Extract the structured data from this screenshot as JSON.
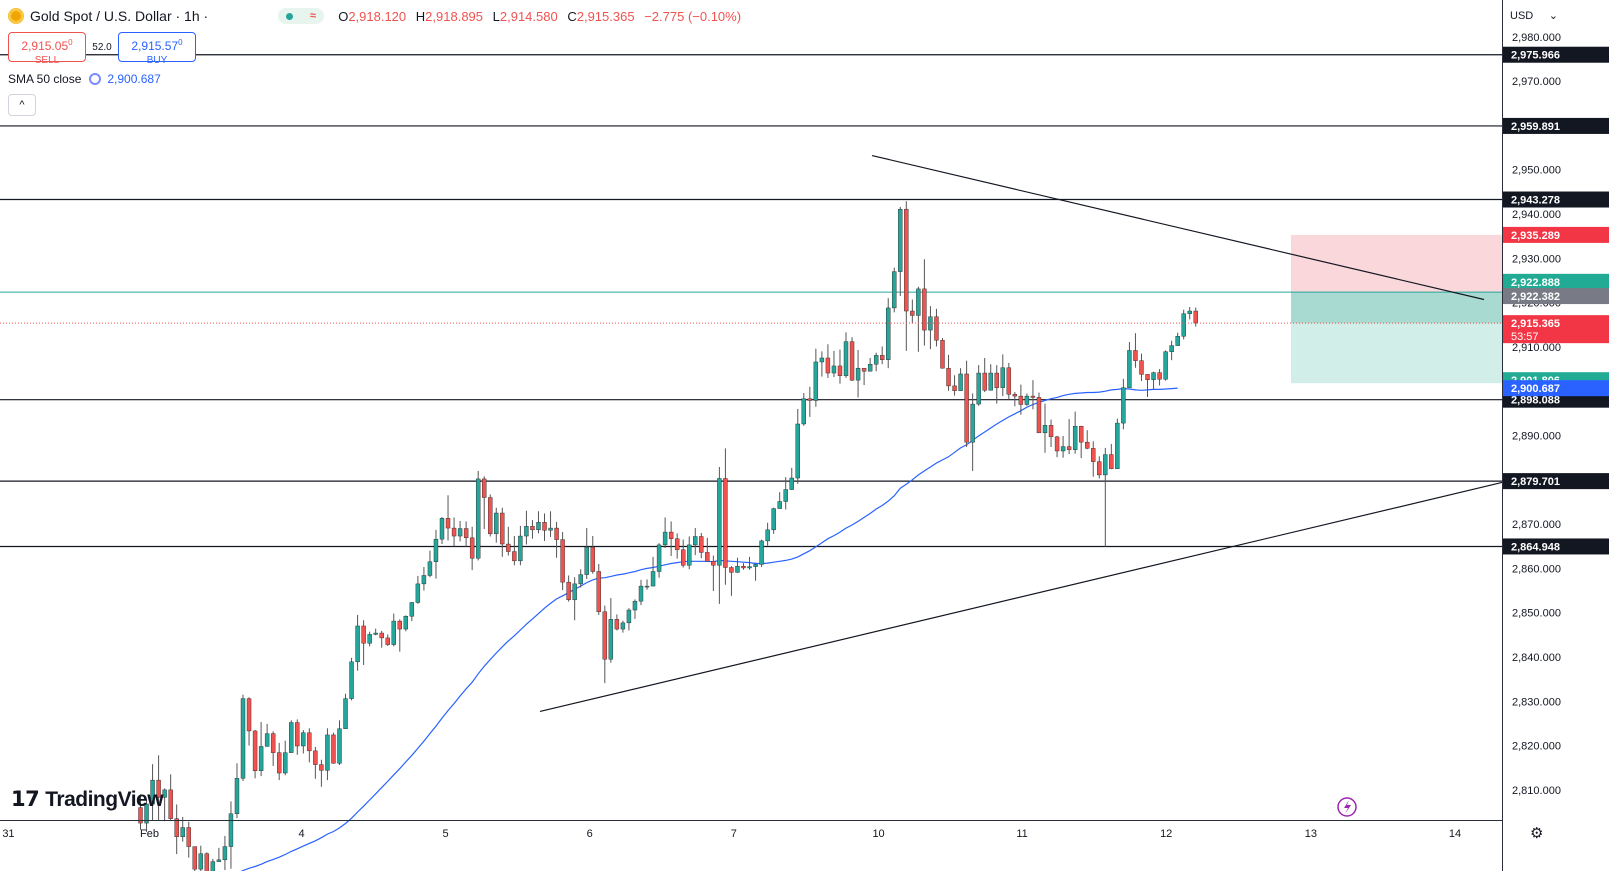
{
  "header": {
    "symbol": "Gold Spot / U.S. Dollar · 1h ·",
    "ohlc": [
      {
        "k": "O",
        "v": "2,918.120"
      },
      {
        "k": "H",
        "v": "2,918.895"
      },
      {
        "k": "L",
        "v": "2,914.580"
      },
      {
        "k": "C",
        "v": "2,915.365"
      },
      {
        "k": "",
        "v": "−2.775 (−0.10%)"
      }
    ],
    "sell_price": "2,915.05",
    "sell_price_sup": "0",
    "sell_label": "SELL",
    "spread": "52.0",
    "buy_price": "2,915.57",
    "buy_price_sup": "0",
    "buy_label": "BUY",
    "sma_label": "SMA 50 close",
    "sma_value": "2,900.687",
    "collapse": "^"
  },
  "currency": "USD",
  "brand": "TradingView",
  "colors": {
    "bull": "#26a69a",
    "bear": "#ef5350",
    "sma": "#2962ff",
    "target_zone": "#b2dfdb",
    "stop_zone": "#f8d2d4",
    "hline": "#131722",
    "tealline": "#26a69a"
  },
  "chart_data": {
    "type": "candlestick",
    "title": "Gold Spot / U.S. Dollar · 1h",
    "x_tick_labels": [
      "31",
      "Feb",
      "4",
      "5",
      "6",
      "7",
      "10",
      "11",
      "12",
      "13",
      "14"
    ],
    "y_tick_labels": [
      "2,980.000",
      "2,970.000",
      "2,960.000",
      "2,950.000",
      "2,940.000",
      "2,930.000",
      "2,920.000",
      "2,910.000",
      "2,900.000",
      "2,890.000",
      "2,880.000",
      "2,870.000",
      "2,860.000",
      "2,850.000",
      "2,840.000",
      "2,830.000",
      "2,820.000",
      "2,810.000"
    ],
    "ylim": [
      2803,
      2987
    ],
    "horizontal_levels": [
      {
        "value": 2975.966,
        "label": "2,975.966",
        "bg": "#131722"
      },
      {
        "value": 2959.891,
        "label": "2,959.891",
        "bg": "#131722"
      },
      {
        "value": 2943.278,
        "label": "2,943.278",
        "bg": "#131722"
      },
      {
        "value": 2898.088,
        "label": "2,898.088",
        "bg": "#131722"
      },
      {
        "value": 2879.701,
        "label": "2,879.701",
        "bg": "#131722"
      },
      {
        "value": 2864.948,
        "label": "2,864.948",
        "bg": "#131722"
      }
    ],
    "price_labels": [
      {
        "value": 2935.289,
        "label": "2,935.289",
        "bg": "#f23645"
      },
      {
        "value": 2922.888,
        "label": "2,922.888",
        "bg": "#22ab94"
      },
      {
        "value": 2922.382,
        "label": "2,922.382",
        "bg": "#787b86"
      },
      {
        "value": 2915.365,
        "label": "2,915.365",
        "bg": "#f23645",
        "countdown": "53:57"
      },
      {
        "value": 2901.806,
        "label": "2,901.806",
        "bg": "#22ab94"
      },
      {
        "value": 2900.687,
        "label": "2,900.687",
        "bg": "#2962ff"
      }
    ],
    "current_price": 2915.365,
    "teal_line": 2922.382,
    "position": {
      "entry": 2922.382,
      "stop": 2935.289,
      "target": 2901.806
    },
    "trendlines": [
      {
        "name": "descending-resistance",
        "from": [
          52,
          2953.2
        ],
        "to": [
          78,
          2920.7
        ]
      },
      {
        "name": "ascending-support",
        "from": [
          0,
          2827.7
        ],
        "to": [
          78,
          2879.4
        ]
      }
    ],
    "candles": [
      [
        2806.0,
        2802.5,
        2809.0,
        2801.0
      ],
      [
        2802.5,
        2806.8,
        2807.8,
        2800.5
      ],
      [
        2806.8,
        2812.2,
        2815.8,
        2803.0
      ],
      [
        2812.2,
        2808.3,
        2817.8,
        2803.0
      ],
      [
        2808.3,
        2810.0,
        2810.3,
        2802.9
      ],
      [
        2810.0,
        2803.5,
        2813.5,
        2803.1
      ],
      [
        2803.5,
        2799.4,
        2806.7,
        2795.5
      ],
      [
        2799.4,
        2801.5,
        2803.9,
        2798.3
      ],
      [
        2801.5,
        2797.2,
        2802.8,
        2794.7
      ],
      [
        2797.2,
        2792.1,
        2797.2,
        2789.8
      ],
      [
        2792.1,
        2795.6,
        2797.4,
        2791.1
      ],
      [
        2795.6,
        2789.1,
        2795.9,
        2786.6
      ],
      [
        2789.1,
        2793.8,
        2794.4,
        2788.8
      ],
      [
        2793.8,
        2794.2,
        2796.9,
        2793.7
      ],
      [
        2794.2,
        2797.2,
        2799.6,
        2791.9
      ],
      [
        2797.2,
        2804.6,
        2807.4,
        2792.2
      ],
      [
        2804.6,
        2812.6,
        2816.0,
        2803.6
      ],
      [
        2812.6,
        2830.6,
        2831.5,
        2812.0
      ],
      [
        2830.6,
        2823.3,
        2830.9,
        2820.0
      ],
      [
        2823.3,
        2814.3,
        2823.5,
        2812.6
      ],
      [
        2814.3,
        2819.8,
        2825.3,
        2813.1
      ],
      [
        2819.8,
        2822.7,
        2824.9,
        2821.3
      ],
      [
        2822.7,
        2818.4,
        2823.2,
        2815.4
      ],
      [
        2818.4,
        2813.8,
        2820.6,
        2812.2
      ],
      [
        2813.8,
        2818.4,
        2821.1,
        2813.3
      ],
      [
        2818.4,
        2825.2,
        2825.7,
        2818.4
      ],
      [
        2825.2,
        2819.9,
        2825.9,
        2817.9
      ],
      [
        2819.9,
        2822.9,
        2823.5,
        2818.2
      ],
      [
        2822.9,
        2818.8,
        2823.9,
        2816.2
      ],
      [
        2818.8,
        2815.7,
        2819.7,
        2812.5
      ],
      [
        2815.7,
        2814.4,
        2816.8,
        2810.7
      ],
      [
        2814.4,
        2822.4,
        2823.9,
        2812.2
      ],
      [
        2822.4,
        2816.0,
        2822.9,
        2815.9
      ],
      [
        2816.0,
        2823.8,
        2825.7,
        2815.6
      ],
      [
        2823.8,
        2830.6,
        2831.7,
        2823.8
      ],
      [
        2830.6,
        2838.9,
        2839.8,
        2830.2
      ],
      [
        2838.9,
        2847.0,
        2849.5,
        2836.9
      ],
      [
        2847.0,
        2843.1,
        2848.3,
        2838.2
      ],
      [
        2843.1,
        2845.1,
        2845.7,
        2842.4
      ],
      [
        2845.1,
        2845.4,
        2846.4,
        2844.9
      ],
      [
        2845.4,
        2844.3,
        2845.9,
        2842.1
      ],
      [
        2844.3,
        2842.8,
        2845.1,
        2842.5
      ],
      [
        2842.8,
        2848.1,
        2849.8,
        2842.4
      ],
      [
        2848.1,
        2846.3,
        2848.5,
        2841.2
      ],
      [
        2846.3,
        2849.2,
        2849.4,
        2845.8
      ],
      [
        2849.2,
        2852.3,
        2852.4,
        2848.1
      ],
      [
        2852.3,
        2856.5,
        2858.3,
        2852.0
      ],
      [
        2856.5,
        2858.4,
        2860.3,
        2855.0
      ],
      [
        2858.4,
        2861.5,
        2864.0,
        2858.0
      ],
      [
        2861.5,
        2866.6,
        2868.7,
        2857.7
      ],
      [
        2866.6,
        2871.3,
        2871.6,
        2865.5
      ],
      [
        2871.3,
        2869.1,
        2876.5,
        2866.3
      ],
      [
        2869.1,
        2867.3,
        2871.5,
        2865.0
      ],
      [
        2867.3,
        2869.0,
        2870.7,
        2866.1
      ],
      [
        2869.0,
        2866.9,
        2870.6,
        2864.9
      ],
      [
        2866.9,
        2862.3,
        2869.4,
        2859.6
      ],
      [
        2862.3,
        2880.2,
        2882.0,
        2861.8
      ],
      [
        2880.2,
        2876.0,
        2880.8,
        2868.9
      ],
      [
        2876.0,
        2867.8,
        2876.7,
        2867.2
      ],
      [
        2867.8,
        2872.5,
        2873.7,
        2865.8
      ],
      [
        2872.5,
        2865.5,
        2873.7,
        2862.6
      ],
      [
        2865.5,
        2863.8,
        2869.4,
        2862.9
      ],
      [
        2863.8,
        2861.7,
        2867.3,
        2860.7
      ],
      [
        2861.7,
        2867.3,
        2869.6,
        2860.7
      ],
      [
        2867.3,
        2869.5,
        2873.0,
        2865.4
      ],
      [
        2869.5,
        2868.7,
        2870.9,
        2866.7
      ],
      [
        2868.7,
        2870.4,
        2872.9,
        2867.9
      ],
      [
        2870.4,
        2868.6,
        2872.4,
        2866.2
      ],
      [
        2868.6,
        2869.1,
        2872.9,
        2867.1
      ],
      [
        2869.1,
        2866.5,
        2870.5,
        2862.4
      ],
      [
        2866.5,
        2856.9,
        2868.2,
        2855.1
      ],
      [
        2856.9,
        2852.9,
        2858.4,
        2852.5
      ],
      [
        2852.9,
        2856.5,
        2858.0,
        2848.3
      ],
      [
        2856.5,
        2858.6,
        2859.8,
        2855.7
      ],
      [
        2858.6,
        2864.8,
        2869.1,
        2857.6
      ],
      [
        2864.8,
        2859.3,
        2867.3,
        2858.8
      ],
      [
        2859.3,
        2850.2,
        2861.0,
        2849.5
      ],
      [
        2850.2,
        2839.5,
        2851.6,
        2834.1
      ],
      [
        2839.5,
        2848.5,
        2853.3,
        2838.7
      ],
      [
        2848.5,
        2846.3,
        2849.6,
        2846.0
      ],
      [
        2846.3,
        2847.7,
        2848.2,
        2845.5
      ],
      [
        2847.7,
        2850.6,
        2851.0,
        2846.0
      ],
      [
        2850.6,
        2852.6,
        2853.0,
        2848.6
      ],
      [
        2852.6,
        2856.0,
        2857.4,
        2851.7
      ],
      [
        2856.0,
        2856.0,
        2857.5,
        2855.2
      ],
      [
        2856.0,
        2859.3,
        2862.6,
        2857.4
      ],
      [
        2859.3,
        2865.3,
        2865.7,
        2857.9
      ],
      [
        2865.3,
        2868.2,
        2871.5,
        2864.6
      ],
      [
        2868.2,
        2866.7,
        2870.6,
        2862.8
      ],
      [
        2866.7,
        2864.2,
        2867.9,
        2862.2
      ],
      [
        2864.2,
        2860.7,
        2866.5,
        2860.2
      ],
      [
        2860.7,
        2865.3,
        2867.2,
        2859.8
      ],
      [
        2865.3,
        2867.2,
        2869.1,
        2863.0
      ],
      [
        2867.2,
        2863.6,
        2868.0,
        2862.3
      ],
      [
        2863.6,
        2861.6,
        2866.9,
        2861.5
      ],
      [
        2861.6,
        2860.7,
        2862.9,
        2854.9
      ],
      [
        2860.7,
        2880.3,
        2882.9,
        2852.0
      ],
      [
        2880.3,
        2860.2,
        2887.1,
        2856.3
      ],
      [
        2860.2,
        2859.1,
        2860.5,
        2853.8
      ],
      [
        2859.1,
        2860.5,
        2862.4,
        2859.0
      ],
      [
        2860.5,
        2860.1,
        2861.2,
        2859.7
      ],
      [
        2860.1,
        2860.4,
        2862.6,
        2859.7
      ],
      [
        2860.4,
        2860.9,
        2861.3,
        2857.2
      ],
      [
        2860.9,
        2866.2,
        2866.5,
        2860.3
      ],
      [
        2866.2,
        2868.7,
        2870.3,
        2865.1
      ],
      [
        2868.7,
        2873.5,
        2873.7,
        2867.8
      ],
      [
        2873.5,
        2875.1,
        2877.2,
        2874.6
      ],
      [
        2875.1,
        2877.8,
        2880.6,
        2873.3
      ],
      [
        2877.8,
        2880.4,
        2882.7,
        2877.7
      ],
      [
        2880.4,
        2892.6,
        2896.0,
        2879.1
      ],
      [
        2892.6,
        2898.3,
        2899.6,
        2892.2
      ],
      [
        2898.3,
        2897.9,
        2901.0,
        2894.2
      ],
      [
        2897.9,
        2906.6,
        2909.6,
        2896.5
      ],
      [
        2906.6,
        2907.5,
        2909.0,
        2903.3
      ],
      [
        2907.5,
        2904.1,
        2910.6,
        2903.0
      ],
      [
        2904.1,
        2905.7,
        2909.1,
        2903.2
      ],
      [
        2905.7,
        2903.5,
        2909.4,
        2901.7
      ],
      [
        2903.5,
        2911.2,
        2913.3,
        2903.0
      ],
      [
        2911.2,
        2902.5,
        2912.2,
        2902.3
      ],
      [
        2902.5,
        2905.2,
        2909.3,
        2898.6
      ],
      [
        2905.2,
        2904.5,
        2905.2,
        2901.4
      ],
      [
        2904.5,
        2906.1,
        2907.5,
        2905.6
      ],
      [
        2906.1,
        2908.1,
        2908.7,
        2904.5
      ],
      [
        2908.1,
        2907.1,
        2910.1,
        2906.1
      ],
      [
        2907.1,
        2918.8,
        2921.0,
        2905.2
      ],
      [
        2918.8,
        2927.0,
        2927.9,
        2917.8
      ],
      [
        2927.0,
        2941.1,
        2941.6,
        2921.5
      ],
      [
        2941.1,
        2918.1,
        2942.9,
        2909.1
      ],
      [
        2918.1,
        2917.1,
        2920.7,
        2915.3
      ],
      [
        2917.1,
        2923.1,
        2923.6,
        2908.9
      ],
      [
        2923.1,
        2913.8,
        2929.8,
        2910.3
      ],
      [
        2913.8,
        2916.8,
        2919.2,
        2909.5
      ],
      [
        2916.8,
        2911.5,
        2918.6,
        2910.1
      ],
      [
        2911.5,
        2905.2,
        2912.0,
        2905.1
      ],
      [
        2905.2,
        2901.2,
        2908.2,
        2900.1
      ],
      [
        2901.2,
        2900.1,
        2903.6,
        2899.0
      ],
      [
        2900.1,
        2903.9,
        2905.2,
        2902.2
      ],
      [
        2903.9,
        2888.5,
        2906.9,
        2887.4
      ],
      [
        2888.5,
        2897.1,
        2899.5,
        2882.0
      ],
      [
        2897.1,
        2904.1,
        2905.9,
        2896.7
      ],
      [
        2904.1,
        2900.2,
        2907.5,
        2899.8
      ],
      [
        2900.2,
        2904.1,
        2906.1,
        2901.9
      ],
      [
        2904.1,
        2900.8,
        2905.9,
        2897.2
      ],
      [
        2900.8,
        2905.3,
        2908.3,
        2898.9
      ],
      [
        2905.3,
        2899.3,
        2906.4,
        2898.1
      ],
      [
        2899.3,
        2898.9,
        2899.8,
        2896.6
      ],
      [
        2898.9,
        2897.0,
        2901.5,
        2894.7
      ],
      [
        2897.0,
        2898.9,
        2899.5,
        2896.7
      ],
      [
        2898.9,
        2898.6,
        2902.5,
        2895.9
      ],
      [
        2898.6,
        2890.6,
        2899.7,
        2890.6
      ],
      [
        2890.6,
        2892.3,
        2897.2,
        2886.1
      ],
      [
        2892.3,
        2889.7,
        2893.6,
        2887.4
      ],
      [
        2889.7,
        2886.5,
        2889.9,
        2885.1
      ],
      [
        2886.5,
        2887.5,
        2889.9,
        2885.0
      ],
      [
        2887.5,
        2886.8,
        2893.7,
        2885.8
      ],
      [
        2886.8,
        2892.1,
        2895.4,
        2885.9
      ],
      [
        2892.1,
        2888.5,
        2892.2,
        2884.9
      ],
      [
        2888.5,
        2887.1,
        2891.2,
        2886.9
      ],
      [
        2887.1,
        2884.1,
        2888.7,
        2880.7
      ],
      [
        2884.1,
        2881.1,
        2885.3,
        2880.3
      ],
      [
        2881.1,
        2885.7,
        2887.2,
        2864.9
      ],
      [
        2885.7,
        2882.5,
        2888.1,
        2882.4
      ],
      [
        2882.5,
        2892.8,
        2893.8,
        2882.5
      ],
      [
        2892.8,
        2900.8,
        2902.8,
        2891.4
      ],
      [
        2900.8,
        2909.2,
        2911.1,
        2901.1
      ],
      [
        2909.2,
        2906.9,
        2913.1,
        2905.3
      ],
      [
        2906.9,
        2903.8,
        2908.5,
        2902.3
      ],
      [
        2903.8,
        2902.6,
        2903.8,
        2898.7
      ],
      [
        2902.6,
        2904.2,
        2904.4,
        2900.5
      ],
      [
        2904.2,
        2902.7,
        2905.0,
        2901.3
      ],
      [
        2902.7,
        2908.9,
        2909.2,
        2902.4
      ],
      [
        2908.9,
        2910.3,
        2911.4,
        2907.0
      ],
      [
        2910.3,
        2912.4,
        2913.2,
        2910.2
      ],
      [
        2912.4,
        2917.5,
        2918.4,
        2911.7
      ],
      [
        2917.5,
        2918.1,
        2919.0,
        2916.2
      ],
      [
        2918.1,
        2915.4,
        2918.9,
        2914.6
      ]
    ],
    "sma": [
      2789.9,
      2789.9,
      2790.0,
      2790.1,
      2790.1,
      2790.1,
      2790.0,
      2790.1,
      2790.1,
      2790.0,
      2790.0,
      2790.0,
      2790.0,
      2790.1,
      2790.3,
      2790.6,
      2791.1,
      2791.8,
      2792.3,
      2792.7,
      2793.2,
      2793.8,
      2794.3,
      2794.8,
      2795.4,
      2796.1,
      2796.7,
      2797.3,
      2797.9,
      2798.5,
      2799.2,
      2800.0,
      2800.6,
      2801.4,
      2802.4,
      2803.6,
      2805.0,
      2806.3,
      2807.7,
      2809.1,
      2810.5,
      2811.9,
      2813.4,
      2814.8,
      2816.3,
      2817.8,
      2819.4,
      2821.0,
      2822.7,
      2824.4,
      2826.2,
      2827.9,
      2829.5,
      2831.2,
      2832.8,
      2834.3,
      2836.2,
      2837.9,
      2839.4,
      2840.9,
      2842.3,
      2843.6,
      2844.8,
      2846.1,
      2847.4,
      2848.6,
      2849.8,
      2851.0,
      2852.1,
      2853.1,
      2853.8,
      2854.5,
      2855.3,
      2856.0,
      2856.8,
      2857.4,
      2857.8,
      2857.9,
      2858.2,
      2858.5,
      2858.7,
      2859.0,
      2859.3,
      2859.7,
      2860.0,
      2860.2,
      2860.5,
      2860.8,
      2861.1,
      2861.3,
      2861.5,
      2861.6,
      2861.6,
      2861.6,
      2861.6,
      2861.5,
      2861.8,
      2861.7,
      2861.6,
      2861.5,
      2861.4,
      2861.3,
      2861.1,
      2861.1,
      2861.2,
      2861.4,
      2861.6,
      2861.8,
      2862.1,
      2862.6,
      2863.3,
      2864.0,
      2864.9,
      2865.8,
      2866.7,
      2867.4,
      2868.2,
      2869.1,
      2869.8,
      2870.6,
      2871.5,
      2872.4,
      2873.4,
      2874.2,
      2875.2,
      2876.4,
      2878.1,
      2879.0,
      2880.0,
      2881.1,
      2882.0,
      2882.9,
      2883.8,
      2884.5,
      2885.2,
      2886.2,
      2887.2,
      2887.9,
      2888.9,
      2889.9,
      2890.8,
      2891.7,
      2892.6,
      2893.4,
      2894.2,
      2894.9,
      2895.6,
      2896.4,
      2897.0,
      2897.5,
      2897.9,
      2898.3,
      2898.6,
      2899.0,
      2899.3,
      2899.5,
      2899.6,
      2899.7,
      2899.7,
      2899.8,
      2900.0,
      2900.3,
      2900.4,
      2900.6,
      2900.5,
      2900.3,
      2900.2,
      2900.3,
      2900.4,
      2900.4,
      2900.5,
      2900.6,
      2900.7
    ]
  }
}
